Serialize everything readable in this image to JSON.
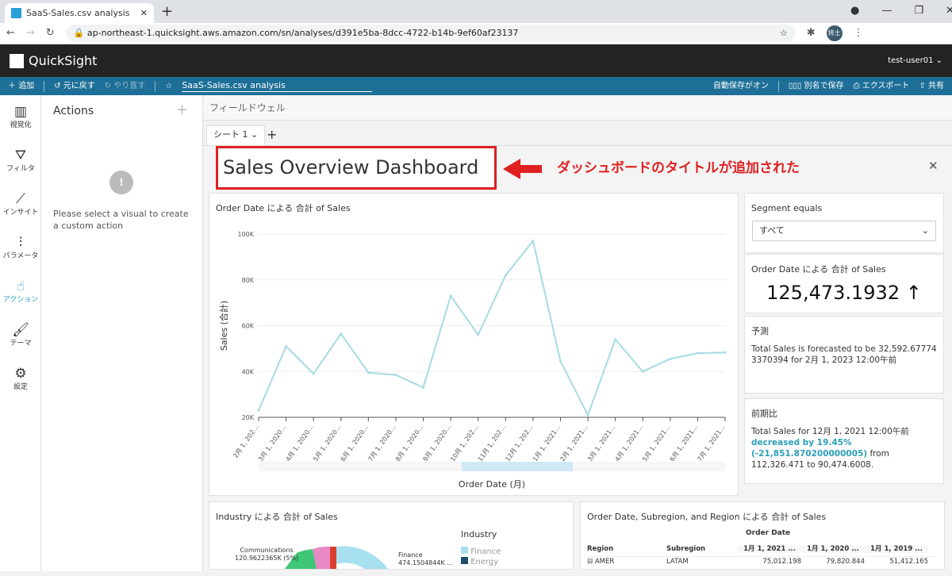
{
  "browser": {
    "tab_title": "SaaS-Sales.csv analysis",
    "url": "ap-northeast-1.quicksight.aws.amazon.com/sn/analyses/d391e5ba-8dcc-4722-b14b-9ef60af23137",
    "profile": "将士"
  },
  "app": {
    "logo": "QuickSight",
    "user": "test-user01"
  },
  "toolbar": {
    "add": "追加",
    "undo": "元に戻す",
    "redo": "やり直す",
    "analysis_name": "SaaS-Sales.csv analysis",
    "autosave": "自動保存がオン",
    "save_as": "別名で保存",
    "export": "エクスポート",
    "share": "共有"
  },
  "rail": [
    {
      "label": "視覚化",
      "icon": "chart-icon"
    },
    {
      "label": "フィルタ",
      "icon": "filter-icon"
    },
    {
      "label": "インサイト",
      "icon": "insight-icon"
    },
    {
      "label": "パラメータ",
      "icon": "sliders-icon"
    },
    {
      "label": "アクション",
      "icon": "action-icon"
    },
    {
      "label": "テーマ",
      "icon": "brush-icon"
    },
    {
      "label": "設定",
      "icon": "gear-icon"
    }
  ],
  "actions": {
    "title": "Actions",
    "empty_message": "Please select a visual to create a custom action"
  },
  "fieldwell": "フィールドウェル",
  "sheet": {
    "tab": "シート 1"
  },
  "dashboard": {
    "title": "Sales Overview Dashboard",
    "annotation": "ダッシュボードのタイトルが追加された"
  },
  "colors": {
    "accent": "#1d6f97",
    "line": "#a6dbe3",
    "annotation": "#e02020",
    "link": "#2a9fb8"
  },
  "chart_data": {
    "type": "line",
    "title": "Order Date による 合計 of Sales",
    "xlabel": "Order Date (月)",
    "ylabel": "Sales (合計)",
    "ylim": [
      20000,
      100000
    ],
    "yticks": [
      "20K",
      "40K",
      "60K",
      "80K",
      "100K"
    ],
    "categories": [
      "2月 1, 202...",
      "3月 1, 2020...",
      "4月 1, 2020...",
      "5月 1, 2020...",
      "6月 1, 2020...",
      "7月 1, 2020...",
      "8月 1, 2020...",
      "9月 1, 2020...",
      "10月 1, 202...",
      "11月 1, 202...",
      "12月 1, 202...",
      "1月 1, 2021...",
      "2月 1, 2021...",
      "3月 1, 2021...",
      "4月 1, 2021...",
      "5月 1, 2021...",
      "6月 1, 2021...",
      "7月 1, 2021..."
    ],
    "values": [
      23000,
      51000,
      39000,
      56500,
      39500,
      38500,
      33000,
      73000,
      56000,
      82000,
      97000,
      44500,
      21000,
      54000,
      40000,
      45500,
      48000,
      48300
    ]
  },
  "filter": {
    "label": "Segment equals",
    "value": "すべて"
  },
  "kpi": {
    "title": "Order Date による 合計 of Sales",
    "value": "125,473.1932",
    "arrow": "↑"
  },
  "forecast": {
    "title": "予測",
    "text": "Total Sales is forecasted to be 32,592.677743370394 for 2月 1, 2023 12:00午前"
  },
  "period": {
    "title": "前期比",
    "text1": "Total Sales for 12月 1, 2021 12:00午前",
    "highlight1": "decreased by 19.45%",
    "highlight2": "(-21,851.870200000005)",
    "text2": " from 112,326.471 to 90,474.6008."
  },
  "pie": {
    "title": "Industry による 合計 of Sales",
    "legend_title": "Industry",
    "legend": [
      "Finance",
      "Energy"
    ],
    "labels": [
      {
        "name": "Communications",
        "value": "120.9622365K (5%)"
      },
      {
        "name": "Finance",
        "value": "474.1504844K ..."
      }
    ]
  },
  "table": {
    "title": "Order Date, Subregion, and Region による 合計 of Sales",
    "group_header": "Order Date",
    "headers": [
      "Region",
      "Subregion",
      "1月 1, 2021 ...",
      "1月 1, 2020 ...",
      "1月 1, 2019 ..."
    ],
    "rows": [
      [
        "⊟ AMER",
        "LATAM",
        "75,012.198",
        "79,820.844",
        "51,412.165"
      ]
    ]
  }
}
